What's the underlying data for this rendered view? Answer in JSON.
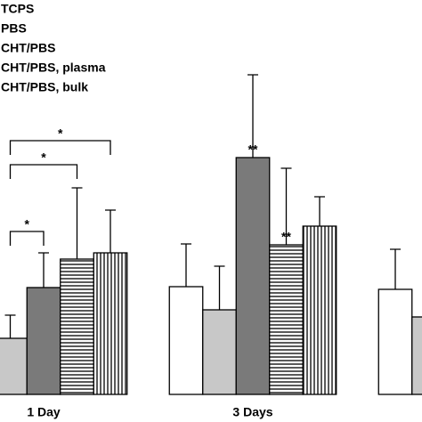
{
  "chart_data": {
    "type": "bar",
    "categories": [
      "1 Day",
      "3 Days",
      null
    ],
    "ylim": [
      0,
      443
    ],
    "series": [
      {
        "name": "TCPS",
        "color": "#ffffff",
        "values": [
          null,
          121,
          118
        ],
        "errors": [
          null,
          48,
          45
        ]
      },
      {
        "name": "PBS",
        "color": "#c8c8c8",
        "values": [
          63,
          95,
          87
        ],
        "errors": [
          26,
          49,
          null
        ]
      },
      {
        "name": "CHT/PBS",
        "color": "#7a7a7a",
        "values": [
          120,
          266,
          null
        ],
        "errors": [
          39,
          93,
          null
        ]
      },
      {
        "name": "CHT/PBS, plasma",
        "color": "#ffffff",
        "hatch": "horizontal",
        "values": [
          152,
          168,
          null
        ],
        "errors": [
          80,
          86,
          null
        ]
      },
      {
        "name": "CHT/PBS, bulk",
        "color": "#ffffff",
        "hatch": "vertical",
        "values": [
          159,
          189,
          null
        ],
        "errors": [
          48,
          33,
          null
        ]
      }
    ],
    "annotations": [
      {
        "text": "**",
        "series": 2,
        "category": 1
      },
      {
        "text": "**",
        "series": 3,
        "category": 1
      }
    ],
    "brackets": [
      {
        "text": "*",
        "from": 1,
        "to": 2,
        "category": 0
      },
      {
        "text": "*",
        "from": 1,
        "to": 3,
        "category": 0
      },
      {
        "text": "*",
        "from": 1,
        "to": 4,
        "category": 0
      }
    ]
  }
}
